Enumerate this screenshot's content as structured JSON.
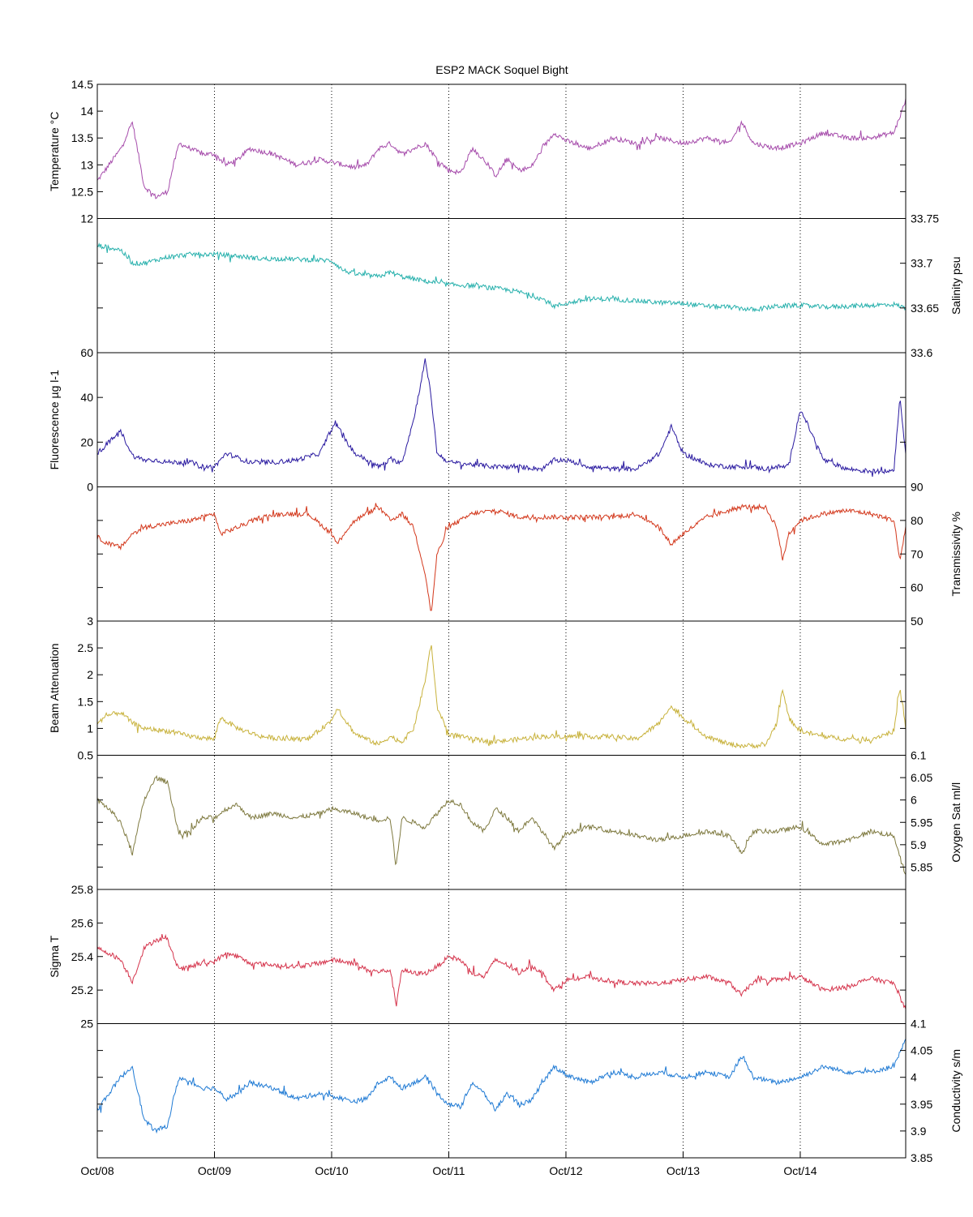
{
  "title": "ESP2 MACK  Soquel Bight",
  "x_ticks": [
    "Oct/08",
    "Oct/09",
    "Oct/10",
    "Oct/11",
    "Oct/12",
    "Oct/13",
    "Oct/14"
  ],
  "chart_data": [
    {
      "type": "line",
      "title": "ESP2 MACK  Soquel Bight",
      "ylabel": "Temperature °C",
      "axis_side": "left",
      "ylim": [
        12,
        14.5
      ],
      "yticks": [
        "12",
        "12.5",
        "13",
        "13.5",
        "14",
        "14.5"
      ],
      "xlim": [
        0,
        6.9
      ],
      "color": "#a64cab",
      "series": [
        {
          "x": [
            0,
            0.1,
            0.2,
            0.3,
            0.4,
            0.5,
            0.6,
            0.65,
            0.7,
            0.8,
            0.9,
            1.0,
            1.1,
            1.2,
            1.3,
            1.5,
            1.7,
            1.9,
            2.0,
            2.1,
            2.2,
            2.3,
            2.4,
            2.5,
            2.6,
            2.7,
            2.8,
            2.9,
            3.0,
            3.1,
            3.2,
            3.3,
            3.4,
            3.5,
            3.6,
            3.7,
            3.8,
            3.9,
            4.0,
            4.2,
            4.4,
            4.6,
            4.8,
            5.0,
            5.2,
            5.4,
            5.5,
            5.6,
            5.8,
            6.0,
            6.2,
            6.4,
            6.6,
            6.8,
            6.9
          ],
          "y": [
            12.7,
            13.0,
            13.3,
            13.8,
            12.6,
            12.4,
            12.5,
            13.0,
            13.4,
            13.3,
            13.2,
            13.2,
            13.0,
            13.1,
            13.3,
            13.2,
            13.0,
            13.1,
            13.05,
            13.0,
            12.95,
            13.0,
            13.3,
            13.4,
            13.2,
            13.3,
            13.4,
            13.1,
            12.9,
            12.85,
            13.3,
            13.1,
            12.8,
            13.1,
            12.9,
            12.95,
            13.3,
            13.6,
            13.45,
            13.3,
            13.5,
            13.4,
            13.5,
            13.4,
            13.5,
            13.4,
            13.8,
            13.4,
            13.3,
            13.4,
            13.6,
            13.5,
            13.5,
            13.6,
            14.2
          ]
        }
      ]
    },
    {
      "type": "line",
      "ylabel": "Salinity psu",
      "axis_side": "right",
      "ylim": [
        33.6,
        33.75
      ],
      "yticks": [
        "33.6",
        "33.65",
        "33.7",
        "33.75"
      ],
      "xlim": [
        0,
        6.9
      ],
      "color": "#26b0ac",
      "series": [
        {
          "x": [
            0,
            0.2,
            0.3,
            0.4,
            0.6,
            0.8,
            1.0,
            1.2,
            1.4,
            1.6,
            2.0,
            2.1,
            2.2,
            2.4,
            2.5,
            2.6,
            2.8,
            3.0,
            3.2,
            3.4,
            3.6,
            3.8,
            3.9,
            4.0,
            4.2,
            4.4,
            4.6,
            4.8,
            5.0,
            5.2,
            5.4,
            5.6,
            5.8,
            6.0,
            6.2,
            6.4,
            6.6,
            6.8,
            6.9
          ],
          "y": [
            33.72,
            33.715,
            33.7,
            33.7,
            33.707,
            33.71,
            33.71,
            33.708,
            33.705,
            33.705,
            33.703,
            33.692,
            33.688,
            33.685,
            33.69,
            33.685,
            33.68,
            33.676,
            33.675,
            33.672,
            33.668,
            33.66,
            33.652,
            33.655,
            33.66,
            33.66,
            33.658,
            33.656,
            33.655,
            33.652,
            33.651,
            33.648,
            33.652,
            33.653,
            33.651,
            33.652,
            33.653,
            33.654,
            33.65
          ]
        }
      ]
    },
    {
      "type": "line",
      "ylabel": "Fluorescence µg l-1",
      "axis_side": "left",
      "ylim": [
        0,
        60
      ],
      "yticks": [
        "0",
        "20",
        "40",
        "60"
      ],
      "xlim": [
        0,
        6.9
      ],
      "color": "#2a1aa0",
      "series": [
        {
          "x": [
            0,
            0.1,
            0.2,
            0.3,
            0.4,
            0.5,
            0.6,
            0.8,
            0.9,
            1.0,
            1.1,
            1.2,
            1.3,
            1.5,
            1.7,
            1.9,
            2.0,
            2.05,
            2.1,
            2.2,
            2.3,
            2.4,
            2.5,
            2.6,
            2.7,
            2.8,
            2.85,
            2.9,
            3.0,
            3.2,
            3.4,
            3.6,
            3.8,
            3.9,
            4.0,
            4.2,
            4.4,
            4.6,
            4.8,
            4.9,
            5.0,
            5.2,
            5.4,
            5.6,
            5.7,
            5.8,
            5.9,
            6.0,
            6.2,
            6.4,
            6.6,
            6.75,
            6.8,
            6.85,
            6.9
          ],
          "y": [
            15,
            20,
            25,
            14,
            12,
            12,
            11,
            11,
            9,
            9,
            15,
            13,
            11,
            11,
            12,
            15,
            26,
            28,
            22,
            15,
            12,
            9,
            12,
            11,
            30,
            57,
            40,
            15,
            11,
            10,
            9,
            9,
            8,
            12,
            12,
            9,
            8,
            8,
            15,
            27,
            15,
            10,
            9,
            9,
            8,
            9,
            9,
            35,
            12,
            8,
            7,
            7,
            8,
            40,
            15
          ]
        }
      ]
    },
    {
      "type": "line",
      "ylabel": "Transmissivity %",
      "axis_side": "right",
      "ylim": [
        50,
        90
      ],
      "yticks": [
        "50",
        "60",
        "70",
        "80",
        "90"
      ],
      "xlim": [
        0,
        6.9
      ],
      "color": "#d3381c",
      "series": [
        {
          "x": [
            0,
            0.1,
            0.2,
            0.3,
            0.4,
            0.6,
            0.8,
            1.0,
            1.05,
            1.2,
            1.4,
            1.6,
            1.8,
            2.0,
            2.05,
            2.1,
            2.2,
            2.3,
            2.4,
            2.5,
            2.6,
            2.7,
            2.8,
            2.85,
            2.9,
            3.0,
            3.2,
            3.4,
            3.6,
            3.8,
            4.0,
            4.2,
            4.4,
            4.6,
            4.8,
            4.85,
            4.9,
            5.0,
            5.2,
            5.4,
            5.5,
            5.6,
            5.7,
            5.8,
            5.85,
            5.9,
            6.0,
            6.2,
            6.4,
            6.6,
            6.8,
            6.85,
            6.9
          ],
          "y": [
            75,
            73,
            72,
            76,
            78,
            79,
            80,
            82,
            76,
            78,
            81,
            82,
            82,
            76,
            73,
            76,
            80,
            82,
            84,
            80,
            82,
            78,
            64,
            52,
            70,
            78,
            82,
            83,
            81,
            81,
            81,
            81,
            81,
            82,
            78,
            75,
            73,
            76,
            81,
            83,
            84,
            84,
            84,
            78,
            68,
            76,
            80,
            82,
            83,
            82,
            80,
            68,
            78
          ]
        }
      ]
    },
    {
      "type": "line",
      "ylabel": "Beam Attenuation",
      "axis_side": "left",
      "ylim": [
        0.5,
        3
      ],
      "yticks": [
        "0.5",
        "1",
        "1.5",
        "2",
        "2.5",
        "3"
      ],
      "xlim": [
        0,
        6.9
      ],
      "color": "#c8b23c",
      "series": [
        {
          "x": [
            0,
            0.1,
            0.2,
            0.3,
            0.4,
            0.6,
            0.8,
            1.0,
            1.05,
            1.2,
            1.4,
            1.6,
            1.8,
            2.0,
            2.05,
            2.1,
            2.2,
            2.3,
            2.4,
            2.5,
            2.6,
            2.7,
            2.8,
            2.85,
            2.9,
            3.0,
            3.2,
            3.4,
            3.6,
            3.8,
            4.0,
            4.2,
            4.4,
            4.6,
            4.8,
            4.85,
            4.9,
            5.0,
            5.2,
            5.4,
            5.5,
            5.6,
            5.7,
            5.8,
            5.85,
            5.9,
            6.0,
            6.2,
            6.4,
            6.6,
            6.8,
            6.85,
            6.9
          ],
          "y": [
            1.1,
            1.25,
            1.3,
            1.1,
            1.0,
            0.95,
            0.85,
            0.8,
            1.2,
            1.0,
            0.85,
            0.8,
            0.8,
            1.15,
            1.4,
            1.2,
            0.9,
            0.8,
            0.7,
            0.85,
            0.75,
            1.0,
            1.9,
            2.6,
            1.4,
            0.9,
            0.8,
            0.75,
            0.8,
            0.85,
            0.85,
            0.85,
            0.85,
            0.8,
            1.1,
            1.3,
            1.4,
            1.2,
            0.85,
            0.7,
            0.68,
            0.68,
            0.68,
            1.1,
            1.75,
            1.2,
            0.95,
            0.85,
            0.8,
            0.8,
            0.95,
            1.75,
            1.0
          ]
        }
      ]
    },
    {
      "type": "line",
      "ylabel": "Oxygen Sat ml/l",
      "axis_side": "right",
      "ylim": [
        5.8,
        6.1
      ],
      "yticks": [
        "5.85",
        "5.9",
        "5.95",
        "6",
        "6.05",
        "6.1"
      ],
      "xlim": [
        0,
        6.9
      ],
      "color": "#7f7a40",
      "series": [
        {
          "x": [
            0,
            0.1,
            0.2,
            0.3,
            0.4,
            0.5,
            0.6,
            0.65,
            0.7,
            0.8,
            0.9,
            1.0,
            1.1,
            1.2,
            1.3,
            1.5,
            1.7,
            1.9,
            2.0,
            2.1,
            2.2,
            2.3,
            2.4,
            2.5,
            2.55,
            2.6,
            2.7,
            2.8,
            2.9,
            3.0,
            3.1,
            3.2,
            3.3,
            3.4,
            3.5,
            3.6,
            3.7,
            3.8,
            3.9,
            4.0,
            4.2,
            4.4,
            4.6,
            4.8,
            5.0,
            5.2,
            5.4,
            5.5,
            5.6,
            5.8,
            6.0,
            6.2,
            6.4,
            6.6,
            6.8,
            6.9
          ],
          "y": [
            6.0,
            5.98,
            5.95,
            5.88,
            6.0,
            6.05,
            6.04,
            5.98,
            5.92,
            5.93,
            5.96,
            5.96,
            5.98,
            5.99,
            5.96,
            5.97,
            5.96,
            5.97,
            5.98,
            5.975,
            5.97,
            5.96,
            5.955,
            5.96,
            5.85,
            5.96,
            5.95,
            5.94,
            5.97,
            6.0,
            5.99,
            5.95,
            5.93,
            5.98,
            5.96,
            5.93,
            5.96,
            5.93,
            5.89,
            5.925,
            5.94,
            5.93,
            5.92,
            5.91,
            5.92,
            5.93,
            5.92,
            5.88,
            5.93,
            5.93,
            5.94,
            5.9,
            5.91,
            5.93,
            5.92,
            5.83
          ]
        }
      ]
    },
    {
      "type": "line",
      "ylabel": "Sigma T",
      "axis_side": "left",
      "ylim": [
        25,
        25.8
      ],
      "yticks": [
        "25",
        "25.2",
        "25.4",
        "25.6",
        "25.8"
      ],
      "xlim": [
        0,
        6.9
      ],
      "color": "#d5344c",
      "series": [
        {
          "x": [
            0,
            0.1,
            0.2,
            0.3,
            0.4,
            0.5,
            0.6,
            0.65,
            0.7,
            0.8,
            0.9,
            1.0,
            1.1,
            1.2,
            1.3,
            1.5,
            1.7,
            1.9,
            2.0,
            2.1,
            2.2,
            2.3,
            2.4,
            2.5,
            2.55,
            2.6,
            2.7,
            2.8,
            2.9,
            3.0,
            3.1,
            3.2,
            3.3,
            3.4,
            3.5,
            3.6,
            3.7,
            3.8,
            3.9,
            4.0,
            4.2,
            4.4,
            4.6,
            4.8,
            5.0,
            5.2,
            5.4,
            5.5,
            5.6,
            5.8,
            6.0,
            6.2,
            6.4,
            6.6,
            6.8,
            6.9
          ],
          "y": [
            25.45,
            25.42,
            25.38,
            25.25,
            25.45,
            25.5,
            25.5,
            25.4,
            25.32,
            25.34,
            25.36,
            25.37,
            25.42,
            25.4,
            25.36,
            25.35,
            25.34,
            25.36,
            25.38,
            25.37,
            25.36,
            25.32,
            25.31,
            25.32,
            25.12,
            25.32,
            25.3,
            25.3,
            25.34,
            25.4,
            25.38,
            25.3,
            25.28,
            25.38,
            25.35,
            25.3,
            25.35,
            25.3,
            25.2,
            25.26,
            25.28,
            25.25,
            25.24,
            25.24,
            25.26,
            25.28,
            25.24,
            25.17,
            25.25,
            25.26,
            25.28,
            25.2,
            25.22,
            25.27,
            25.24,
            25.08
          ]
        }
      ]
    },
    {
      "type": "line",
      "ylabel": "Conductivity s/m",
      "axis_side": "right",
      "ylim": [
        3.85,
        4.1
      ],
      "yticks": [
        "3.85",
        "3.9",
        "3.95",
        "4",
        "4.05",
        "4.1"
      ],
      "xlim": [
        0,
        6.9
      ],
      "color": "#1f7ad4",
      "series": [
        {
          "x": [
            0,
            0.1,
            0.2,
            0.3,
            0.4,
            0.5,
            0.6,
            0.65,
            0.7,
            0.8,
            0.9,
            1.0,
            1.1,
            1.2,
            1.3,
            1.5,
            1.7,
            1.9,
            2.0,
            2.1,
            2.2,
            2.3,
            2.4,
            2.5,
            2.6,
            2.7,
            2.8,
            2.9,
            3.0,
            3.1,
            3.2,
            3.3,
            3.4,
            3.5,
            3.6,
            3.7,
            3.8,
            3.9,
            4.0,
            4.2,
            4.4,
            4.6,
            4.8,
            5.0,
            5.2,
            5.4,
            5.5,
            5.6,
            5.8,
            6.0,
            6.2,
            6.4,
            6.6,
            6.8,
            6.9
          ],
          "y": [
            3.94,
            3.97,
            4.0,
            4.02,
            3.92,
            3.9,
            3.91,
            3.96,
            4.0,
            3.99,
            3.98,
            3.98,
            3.96,
            3.97,
            3.99,
            3.98,
            3.96,
            3.97,
            3.965,
            3.96,
            3.955,
            3.96,
            3.99,
            4.0,
            3.98,
            3.99,
            4.0,
            3.97,
            3.95,
            3.945,
            3.99,
            3.97,
            3.94,
            3.97,
            3.95,
            3.955,
            3.99,
            4.02,
            4.005,
            3.99,
            4.01,
            4.0,
            4.01,
            4.0,
            4.01,
            4.0,
            4.04,
            4.0,
            3.99,
            4.0,
            4.02,
            4.01,
            4.01,
            4.02,
            4.07
          ]
        }
      ]
    }
  ]
}
